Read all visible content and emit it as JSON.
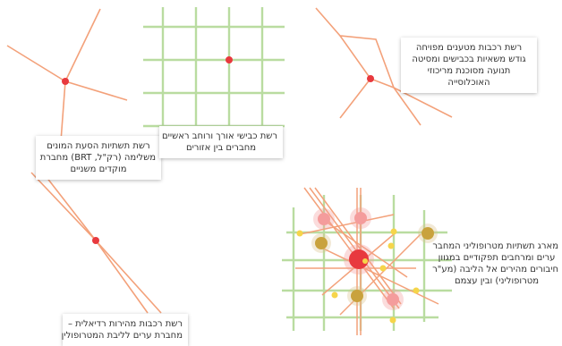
{
  "colors": {
    "orange_line": "#f3a17a",
    "light_orange": "#f7c09c",
    "red_node": "#e8393e",
    "green_grid": "#b9dca0",
    "pink_node": "#f49c9c",
    "gold_node": "#c9a23d",
    "yellow_node": "#f6d54a"
  },
  "captions": {
    "hub": {
      "lines": [
        "רשת תשתיות הסעת המונים",
        "משלימה (רק\"ל, BRT) מחברת",
        "מוקדים משניים"
      ]
    },
    "grid": {
      "lines": [
        "רשת כבישי אורך ורוחב ראשיים",
        "מחברים בין אזורים"
      ]
    },
    "branching": {
      "lines": [
        "רשת רכבות מטענים מפויחה",
        "גודש משאיות בכבישים ומסיטה",
        "תנועה מסוכנת מריכוזי",
        "האוכלוסייה"
      ]
    },
    "radial": {
      "lines": [
        "רשת רכבות מהירות רדיאלית –",
        "מחברת ערים לליבת המטרופולין"
      ]
    },
    "metro": {
      "lines": [
        "מארג תשתיות מטרופוליני המחבר",
        "ערים ומרחבים תפקודיים במגוון",
        "חיבורים מהירים אל הליבה (מע\"ר",
        "מטרופוליני) ובין עצמם"
      ]
    }
  }
}
